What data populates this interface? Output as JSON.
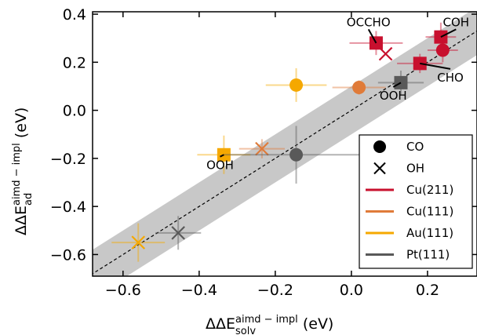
{
  "chart_data": {
    "type": "scatter",
    "xlabel": {
      "base": "ΔΔE",
      "sup": "aimd − impl",
      "sub": "solv",
      "unit": "(eV)"
    },
    "ylabel": {
      "base": "ΔΔE",
      "sup": "aimd − impl",
      "sub": "ad",
      "unit": "(eV)"
    },
    "xlim": [
      -0.68,
      0.33
    ],
    "ylim": [
      -0.69,
      0.41
    ],
    "xticks": [
      -0.6,
      -0.4,
      -0.2,
      0.0,
      0.2
    ],
    "xtick_labels": [
      "−0.6",
      "−0.4",
      "−0.2",
      "0.0",
      "0.2"
    ],
    "yticks": [
      -0.6,
      -0.4,
      -0.2,
      0.0,
      0.2,
      0.4
    ],
    "ytick_labels": [
      "−0.6",
      "−0.4",
      "−0.2",
      "0.0",
      "0.2",
      "0.4"
    ],
    "diagonal": {
      "style": "dashed",
      "band_halfwidth": 0.1,
      "band_color": "#c8c8c8"
    },
    "colors": {
      "Cu(211)": "#c8102e",
      "Cu(111)": "#e07b39",
      "Au(111)": "#f5a800",
      "Pt(111)": "#595959"
    },
    "points": [
      {
        "surface": "Cu(211)",
        "adsorbate": "OCCHO",
        "marker": "square",
        "x": 0.065,
        "y": 0.28,
        "xerr": 0.07,
        "yerr": 0.05
      },
      {
        "surface": "Cu(211)",
        "adsorbate": "OH",
        "marker": "cross",
        "x": 0.09,
        "y": 0.235,
        "xerr": 0.0,
        "yerr": 0.0
      },
      {
        "surface": "Cu(211)",
        "adsorbate": "CHO",
        "marker": "square",
        "x": 0.18,
        "y": 0.195,
        "xerr": 0.06,
        "yerr": 0.04
      },
      {
        "surface": "Cu(211)",
        "adsorbate": "COH",
        "marker": "square",
        "x": 0.235,
        "y": 0.305,
        "xerr": 0.04,
        "yerr": 0.06
      },
      {
        "surface": "Cu(211)",
        "adsorbate": "CO",
        "marker": "circle",
        "x": 0.24,
        "y": 0.25,
        "xerr": 0.04,
        "yerr": 0.05
      },
      {
        "surface": "Cu(111)",
        "adsorbate": "CO",
        "marker": "circle",
        "x": 0.02,
        "y": 0.095,
        "xerr": 0.07,
        "yerr": 0.03
      },
      {
        "surface": "Cu(111)",
        "adsorbate": "OH",
        "marker": "cross",
        "x": -0.235,
        "y": -0.16,
        "xerr": 0.06,
        "yerr": 0.04
      },
      {
        "surface": "Au(111)",
        "adsorbate": "CO",
        "marker": "circle",
        "x": -0.145,
        "y": 0.105,
        "xerr": 0.08,
        "yerr": 0.07
      },
      {
        "surface": "Au(111)",
        "adsorbate": "OOH",
        "marker": "square",
        "x": -0.335,
        "y": -0.185,
        "xerr": 0.07,
        "yerr": 0.08
      },
      {
        "surface": "Au(111)",
        "adsorbate": "OH",
        "marker": "cross",
        "x": -0.56,
        "y": -0.55,
        "xerr": 0.07,
        "yerr": 0.08
      },
      {
        "surface": "Pt(111)",
        "adsorbate": "OOH",
        "marker": "square",
        "x": 0.13,
        "y": 0.115,
        "xerr": 0.06,
        "yerr": 0.05
      },
      {
        "surface": "Pt(111)",
        "adsorbate": "CO",
        "marker": "circle",
        "x": -0.145,
        "y": -0.185,
        "xerr": 0.19,
        "yerr": 0.12
      },
      {
        "surface": "Pt(111)",
        "adsorbate": "OH",
        "marker": "cross",
        "x": -0.455,
        "y": -0.51,
        "xerr": 0.06,
        "yerr": 0.07
      }
    ],
    "annotations": [
      {
        "text": "OCCHO",
        "x": 0.065,
        "y": 0.28,
        "lx": 0.045,
        "ly": 0.35
      },
      {
        "text": "COH",
        "x": 0.235,
        "y": 0.305,
        "lx": 0.275,
        "ly": 0.35
      },
      {
        "text": "CHO",
        "x": 0.18,
        "y": 0.195,
        "lx": 0.26,
        "ly": 0.12
      },
      {
        "text": "OOH",
        "x": 0.13,
        "y": 0.115,
        "lx": 0.11,
        "ly": 0.045
      },
      {
        "text": "OOH",
        "x": -0.335,
        "y": -0.185,
        "lx": -0.345,
        "ly": -0.245
      }
    ],
    "legend": {
      "position": "lower-right",
      "entries": [
        {
          "label": "CO",
          "kind": "circle",
          "color": "#000000"
        },
        {
          "label": "OH",
          "kind": "cross",
          "color": "#000000"
        },
        {
          "label": "Cu(211)",
          "kind": "line",
          "color": "#c8102e"
        },
        {
          "label": "Cu(111)",
          "kind": "line",
          "color": "#e07b39"
        },
        {
          "label": "Au(111)",
          "kind": "line",
          "color": "#f5a800"
        },
        {
          "label": "Pt(111)",
          "kind": "line",
          "color": "#595959"
        }
      ]
    }
  }
}
